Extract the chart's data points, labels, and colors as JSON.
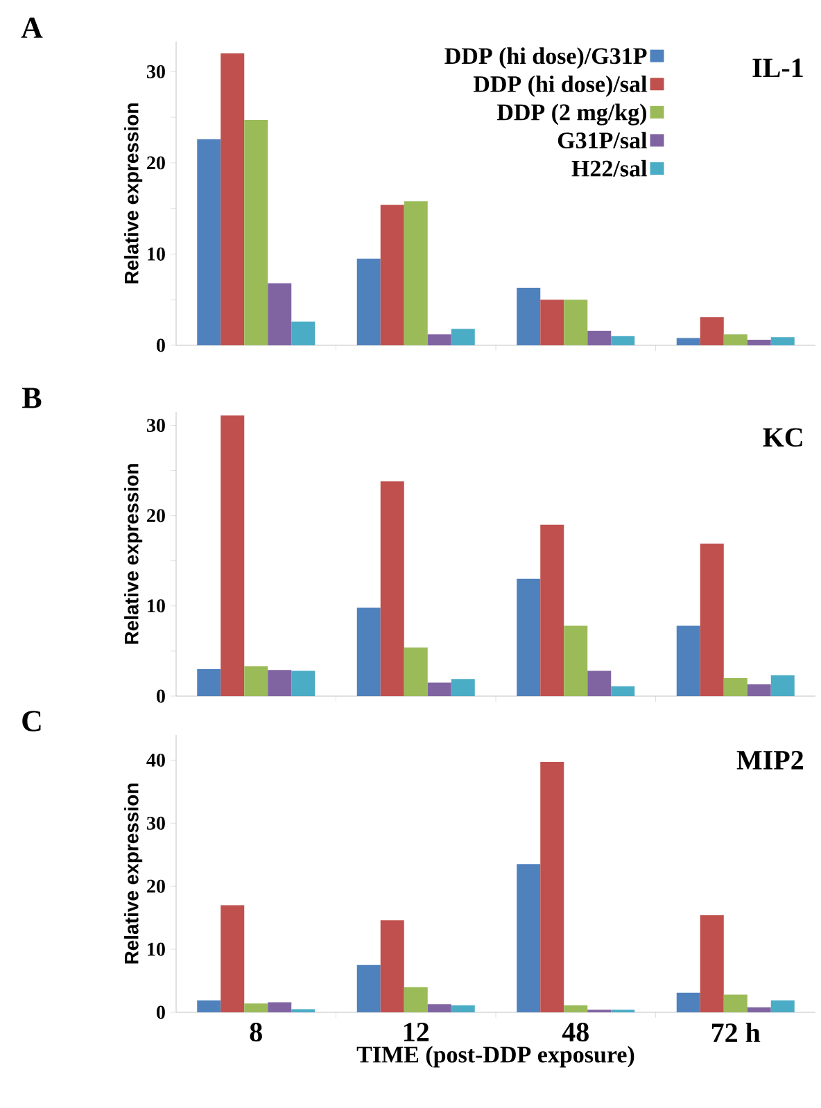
{
  "chart_data": [
    {
      "type": "bar",
      "title": "IL-1",
      "annotations": [
        "A"
      ],
      "ylabel": "Relative expression",
      "categories": [
        null,
        null,
        null,
        null
      ],
      "ylim": [
        0,
        33.3
      ],
      "yticks": [
        0,
        {
          "value": 5,
          "label": null
        },
        10,
        {
          "value": 15,
          "label": null
        },
        20,
        {
          "value": 25,
          "label": null
        },
        30
      ],
      "legend": "top right",
      "series": [
        {
          "name": "DDP (hi dose)/G31P",
          "color": "#4f81bd",
          "values": [
            22.6,
            9.5,
            6.3,
            0.8
          ]
        },
        {
          "name": "DDP (hi dose)/sal",
          "color": "#c0504d",
          "values": [
            32.0,
            15.4,
            5.0,
            3.1
          ]
        },
        {
          "name": "DDP (2 mg/kg)",
          "color": "#9bbb59",
          "values": [
            24.7,
            15.8,
            5.0,
            1.2
          ]
        },
        {
          "name": "G31P/sal",
          "color": "#8064a2",
          "values": [
            6.8,
            1.2,
            1.6,
            0.6
          ]
        },
        {
          "name": "H22/sal",
          "color": "#4bacc6",
          "values": [
            2.6,
            1.8,
            1.0,
            0.9
          ]
        }
      ]
    },
    {
      "type": "bar",
      "title": "KC",
      "annotations": [
        "B"
      ],
      "ylabel": "Relative expression",
      "categories": [
        null,
        null,
        null,
        null
      ],
      "ylim": [
        0,
        31.5
      ],
      "yticks": [
        0,
        {
          "value": 5,
          "label": null
        },
        10,
        {
          "value": 15,
          "label": null
        },
        20,
        {
          "value": 25,
          "label": null
        },
        30
      ],
      "series": [
        {
          "color": "#4f81bd",
          "values": [
            3.0,
            9.8,
            13.0,
            7.8
          ]
        },
        {
          "color": "#c0504d",
          "values": [
            31.1,
            23.8,
            19.0,
            16.9
          ]
        },
        {
          "color": "#9bbb59",
          "values": [
            3.3,
            5.4,
            7.8,
            2.0
          ]
        },
        {
          "color": "#8064a2",
          "values": [
            2.9,
            1.5,
            2.8,
            1.3
          ]
        },
        {
          "color": "#4bacc6",
          "values": [
            2.8,
            1.9,
            1.1,
            2.3
          ]
        }
      ]
    },
    {
      "type": "bar",
      "title": "MIP2",
      "annotations": [
        "C"
      ],
      "ylabel": "Relative expression",
      "xlabel": "TIME (post-DDP exposure)",
      "categories": [
        "8",
        "12",
        "48",
        "72 h"
      ],
      "ylim": [
        0,
        44
      ],
      "yticks": [
        0,
        10,
        20,
        30,
        40
      ],
      "series": [
        {
          "color": "#4f81bd",
          "values": [
            1.9,
            7.5,
            23.5,
            3.1
          ]
        },
        {
          "color": "#c0504d",
          "values": [
            17.0,
            14.6,
            39.7,
            15.4
          ]
        },
        {
          "color": "#9bbb59",
          "values": [
            1.4,
            4.0,
            1.1,
            2.8
          ]
        },
        {
          "color": "#8064a2",
          "values": [
            1.6,
            1.3,
            0.4,
            0.8
          ]
        },
        {
          "color": "#4bacc6",
          "values": [
            0.5,
            1.1,
            0.4,
            1.9
          ]
        }
      ]
    }
  ]
}
